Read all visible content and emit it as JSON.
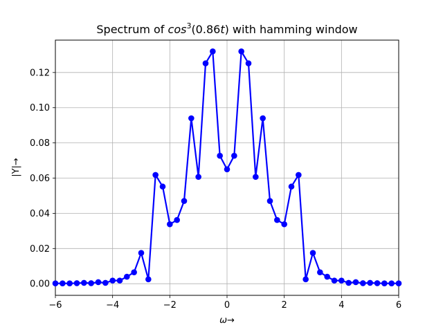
{
  "chart_data": {
    "type": "line",
    "title": {
      "prefix": "Spectrum of ",
      "func": "cos",
      "power": "3",
      "arg_open": "(0.86",
      "arg_var": "t",
      "arg_close": ")",
      "suffix": " with hamming window"
    },
    "xlabel": {
      "symbol": "ω",
      "arrow": "→"
    },
    "ylabel": "|Y|→",
    "xlim": [
      -6,
      6
    ],
    "ylim": [
      -0.0066,
      0.1384
    ],
    "xticks": [
      -6,
      -4,
      -2,
      0,
      2,
      4,
      6
    ],
    "xtick_labels": [
      "−6",
      "−4",
      "−2",
      "0",
      "2",
      "4",
      "6"
    ],
    "yticks": [
      0.0,
      0.02,
      0.04,
      0.06,
      0.08,
      0.1,
      0.12
    ],
    "ytick_labels": [
      "0.00",
      "0.02",
      "0.04",
      "0.06",
      "0.08",
      "0.10",
      "0.12"
    ],
    "grid": true,
    "series": [
      {
        "color": "#0000ff",
        "marker": "circle",
        "x": [
          -6.0,
          -5.75,
          -5.5,
          -5.25,
          -5.0,
          -4.75,
          -4.5,
          -4.25,
          -4.0,
          -3.75,
          -3.5,
          -3.25,
          -3.0,
          -2.75,
          -2.5,
          -2.25,
          -2.0,
          -1.75,
          -1.5,
          -1.25,
          -1.0,
          -0.75,
          -0.5,
          -0.25,
          0.0,
          0.25,
          0.5,
          0.75,
          1.0,
          1.25,
          1.5,
          1.75,
          2.0,
          2.25,
          2.5,
          2.75,
          3.0,
          3.25,
          3.5,
          3.75,
          4.0,
          4.25,
          4.5,
          4.75,
          5.0,
          5.25,
          5.5,
          5.75,
          6.0
        ],
        "y": [
          0.0002,
          0.0002,
          0.0002,
          0.0003,
          0.0005,
          0.0003,
          0.0009,
          0.0005,
          0.0018,
          0.0018,
          0.004,
          0.0065,
          0.0175,
          0.0025,
          0.0618,
          0.0552,
          0.0338,
          0.0362,
          0.047,
          0.094,
          0.0607,
          0.1252,
          0.132,
          0.0727,
          0.065,
          0.0727,
          0.132,
          0.1252,
          0.0607,
          0.094,
          0.047,
          0.0362,
          0.0338,
          0.0552,
          0.0618,
          0.0025,
          0.0175,
          0.0065,
          0.004,
          0.0018,
          0.0018,
          0.0005,
          0.0009,
          0.0003,
          0.0005,
          0.0003,
          0.0002,
          0.0002,
          0.0002
        ]
      }
    ]
  }
}
